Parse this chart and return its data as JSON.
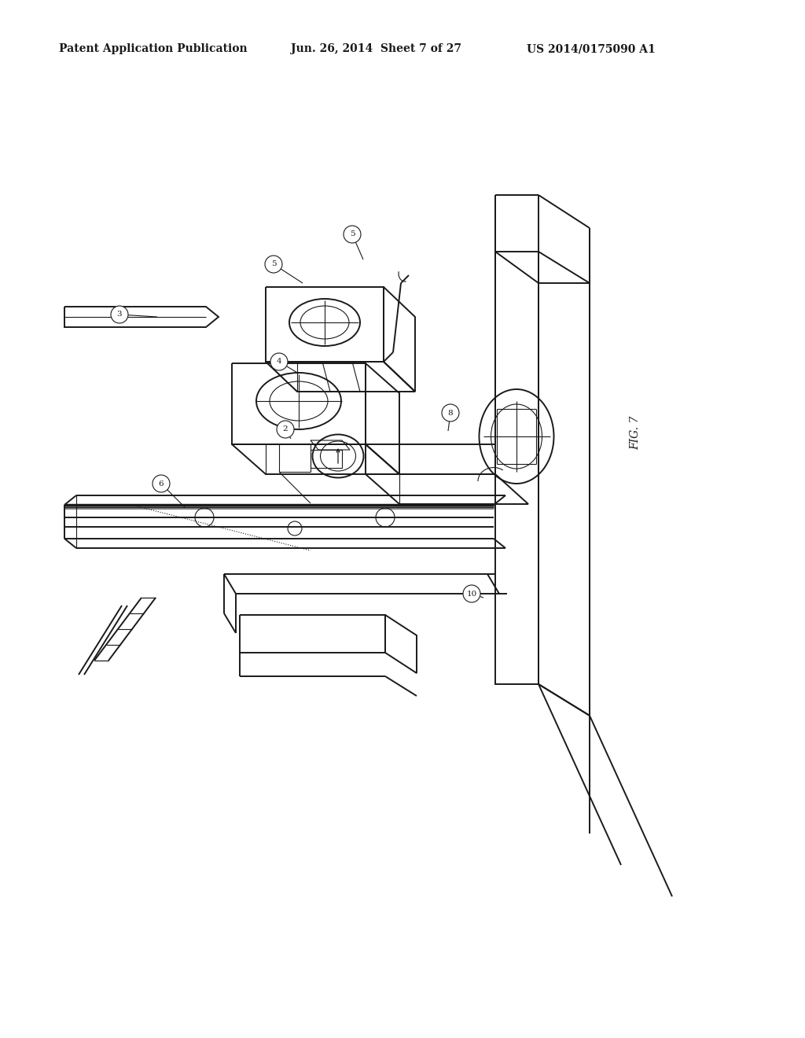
{
  "background_color": "#ffffff",
  "header_left": "Patent Application Publication",
  "header_center": "Jun. 26, 2014  Sheet 7 of 27",
  "header_right": "US 2014/0175090 A1",
  "fig_label": "FIG. 7",
  "line_color": "#1a1a1a",
  "lw": 1.4,
  "tlw": 0.8
}
